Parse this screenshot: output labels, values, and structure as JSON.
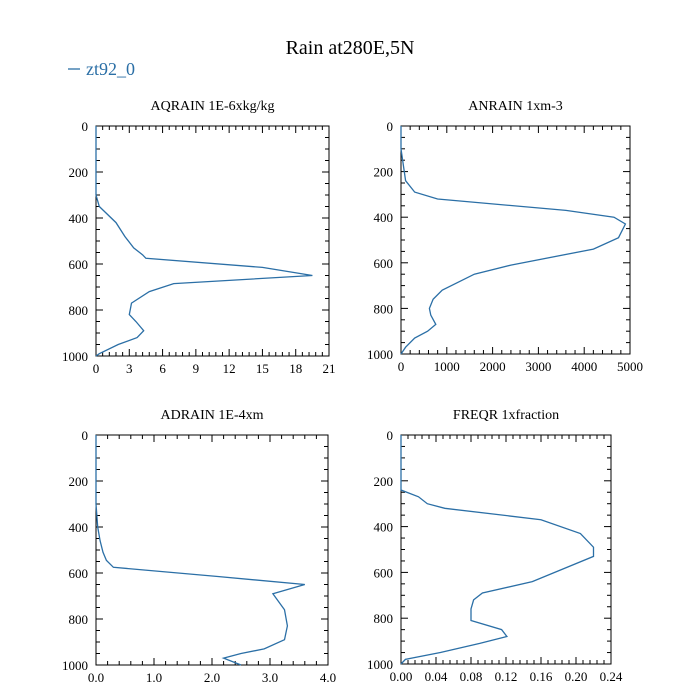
{
  "figure": {
    "title": "Rain at280E,5N",
    "legend_label": "zt92_0",
    "series_color": "#2b6fa6"
  },
  "chart_data": [
    {
      "type": "line",
      "title": "AQRAIN  1E-6xkg/kg",
      "series": [
        {
          "name": "zt92_0",
          "x": [
            0,
            0,
            0,
            0,
            0.3,
            1.8,
            2.6,
            3.4,
            4.2,
            4.5,
            15,
            19.5,
            7,
            4.8,
            3.2,
            3,
            3.6,
            4.3,
            3.7,
            2,
            0.3,
            0
          ],
          "y": [
            0,
            100,
            200,
            300,
            350,
            420,
            480,
            530,
            560,
            575,
            615,
            650,
            685,
            720,
            770,
            820,
            850,
            890,
            920,
            950,
            990,
            1000
          ]
        }
      ],
      "xlim": [
        0,
        21
      ],
      "xticks": [
        0,
        3,
        6,
        9,
        12,
        15,
        18,
        21
      ],
      "xtick_labels": [
        "0",
        "3",
        "6",
        "9",
        "12",
        "15",
        "18",
        "21"
      ],
      "ylim": [
        1000,
        0
      ],
      "yticks": [
        0,
        200,
        400,
        600,
        800,
        1000
      ],
      "ytick_labels": [
        "0",
        "200",
        "400",
        "600",
        "800",
        "1000"
      ]
    },
    {
      "type": "line",
      "title": "ANRAIN  1xm-3",
      "series": [
        {
          "name": "zt92_0",
          "x": [
            0,
            0,
            100,
            300,
            800,
            3600,
            4650,
            4900,
            4750,
            4200,
            2400,
            1600,
            900,
            700,
            620,
            650,
            760,
            580,
            300,
            100,
            0
          ],
          "y": [
            0,
            100,
            240,
            290,
            320,
            370,
            400,
            430,
            490,
            540,
            610,
            650,
            720,
            760,
            800,
            830,
            870,
            900,
            930,
            970,
            1000
          ]
        }
      ],
      "xlim": [
        0,
        5000
      ],
      "xticks": [
        0,
        1000,
        2000,
        3000,
        4000,
        5000
      ],
      "xtick_labels": [
        "0",
        "1000",
        "2000",
        "3000",
        "4000",
        "5000"
      ],
      "ylim": [
        1000,
        0
      ],
      "yticks": [
        0,
        200,
        400,
        600,
        800,
        1000
      ],
      "ytick_labels": [
        "0",
        "200",
        "400",
        "600",
        "800",
        "1000"
      ]
    },
    {
      "type": "line",
      "title": "ADRAIN  1E-4xm",
      "series": [
        {
          "name": "zt92_0",
          "x": [
            0,
            0,
            0.03,
            0.07,
            0.12,
            0.18,
            0.3,
            2.1,
            3.6,
            3.05,
            3.25,
            3.3,
            3.25,
            2.9,
            2.5,
            2.2,
            2.5
          ],
          "y": [
            0,
            300,
            400,
            460,
            510,
            545,
            575,
            615,
            650,
            690,
            760,
            830,
            890,
            930,
            950,
            970,
            1000
          ]
        }
      ],
      "xlim": [
        0,
        4
      ],
      "xticks": [
        0,
        1,
        2,
        3,
        4
      ],
      "xtick_labels": [
        "0.0",
        "1.0",
        "2.0",
        "3.0",
        "4.0"
      ],
      "ylim": [
        1000,
        0
      ],
      "yticks": [
        0,
        200,
        400,
        600,
        800,
        1000
      ],
      "ytick_labels": [
        "0",
        "200",
        "400",
        "600",
        "800",
        "1000"
      ]
    },
    {
      "type": "line",
      "title": "FREQR  1xfraction",
      "series": [
        {
          "name": "zt92_0",
          "x": [
            0,
            0,
            0.02,
            0.03,
            0.05,
            0.16,
            0.205,
            0.22,
            0.22,
            0.15,
            0.093,
            0.083,
            0.08,
            0.08,
            0.115,
            0.121,
            0.09,
            0.045,
            0.005,
            0
          ],
          "y": [
            0,
            240,
            270,
            300,
            320,
            370,
            430,
            490,
            530,
            640,
            690,
            720,
            760,
            810,
            850,
            880,
            910,
            950,
            980,
            1000
          ]
        }
      ],
      "xlim": [
        0,
        0.24
      ],
      "xticks": [
        0,
        0.04,
        0.08,
        0.12,
        0.16,
        0.2,
        0.24
      ],
      "xtick_labels": [
        "0.00",
        "0.04",
        "0.08",
        "0.12",
        "0.16",
        "0.20",
        "0.24"
      ],
      "ylim": [
        1000,
        0
      ],
      "yticks": [
        0,
        200,
        400,
        600,
        800,
        1000
      ],
      "ytick_labels": [
        "0",
        "200",
        "400",
        "600",
        "800",
        "1000"
      ]
    }
  ]
}
